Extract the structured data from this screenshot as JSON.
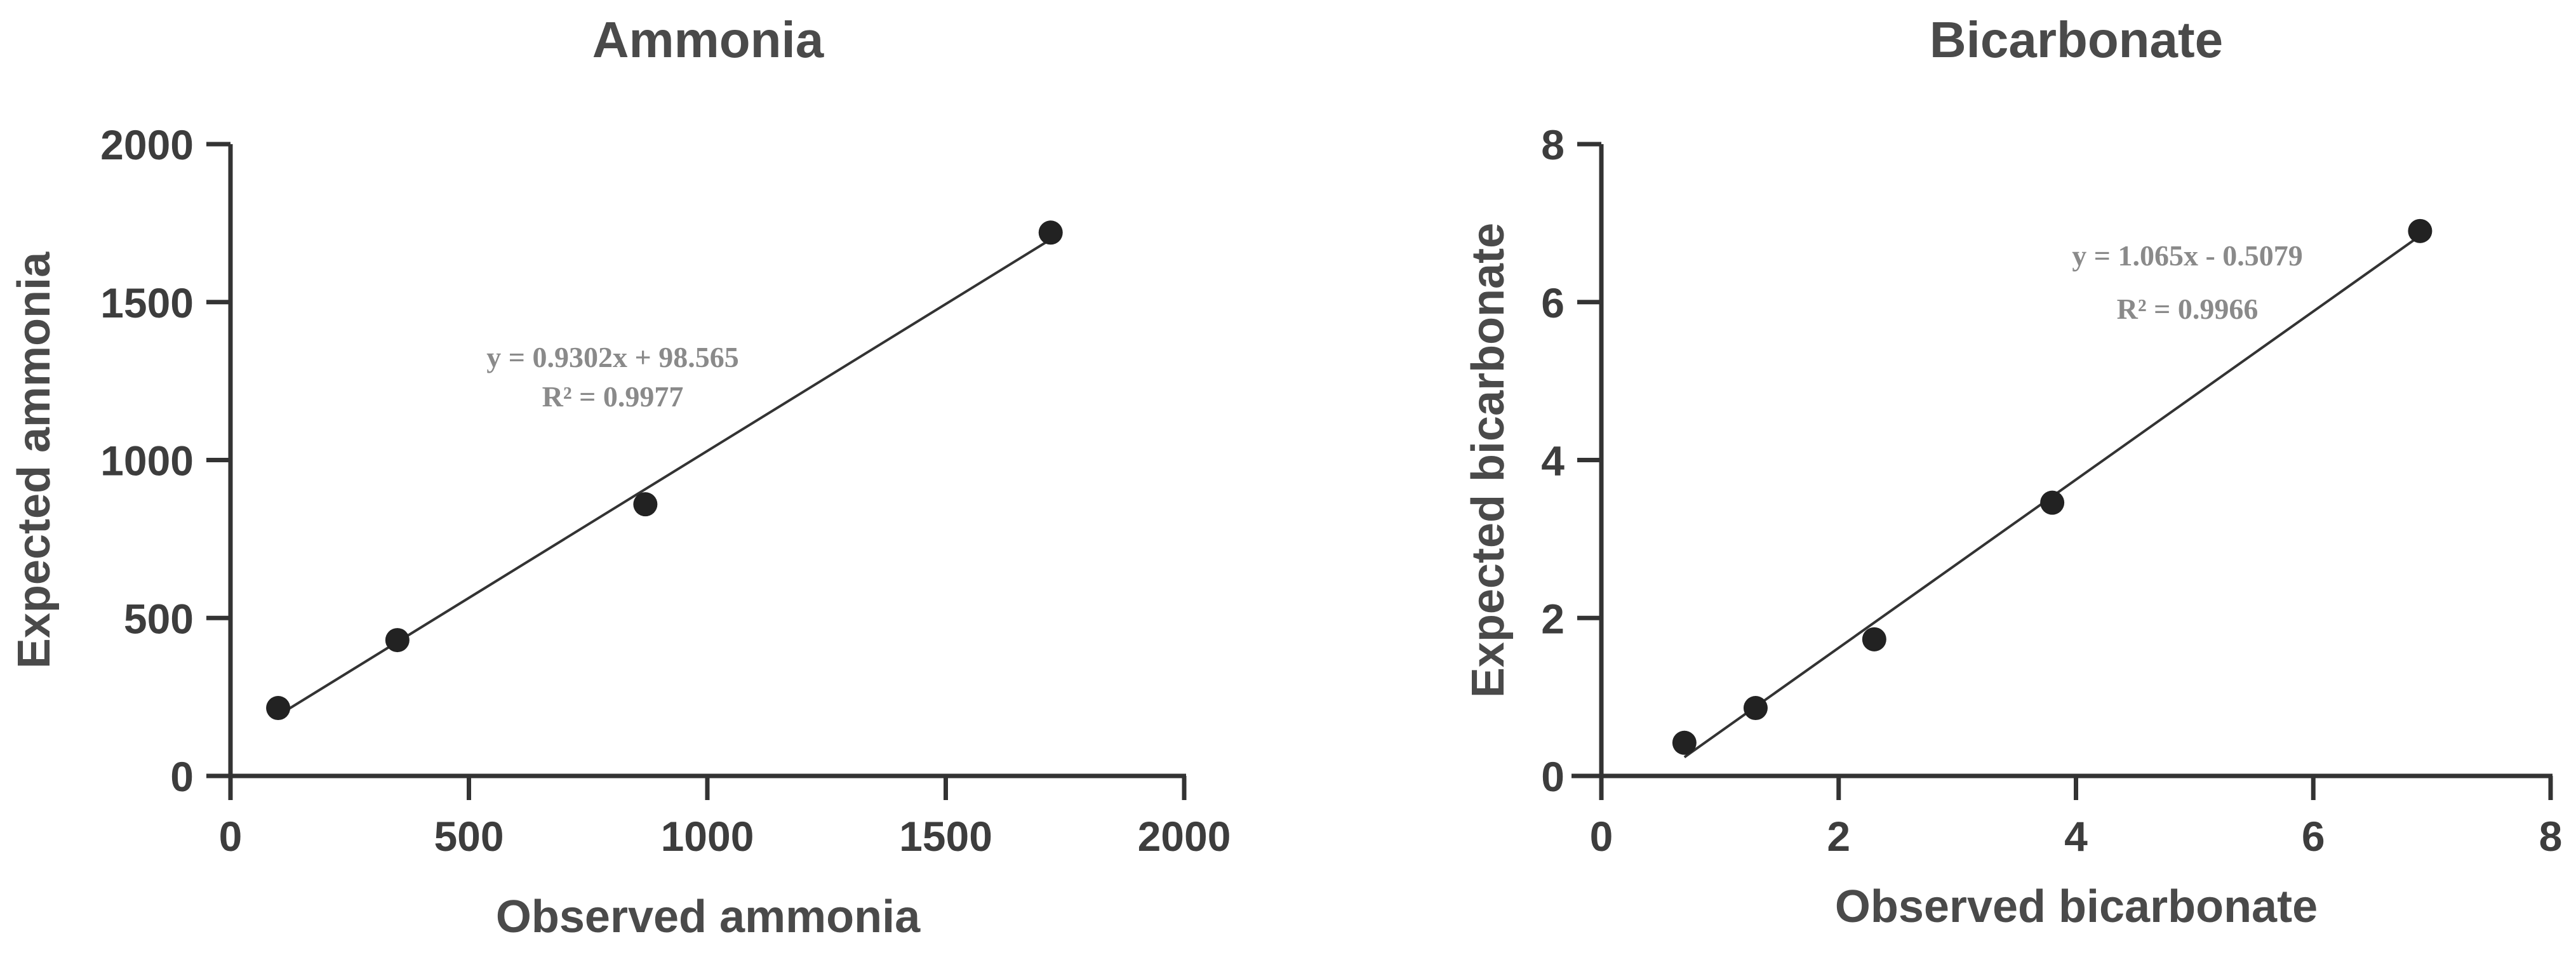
{
  "chart_data": [
    {
      "type": "scatter",
      "title": "Ammonia",
      "xlabel": "Observed ammonia",
      "ylabel": "Expected ammonia",
      "xlim": [
        0,
        2000
      ],
      "ylim": [
        0,
        2000
      ],
      "xticks": [
        0,
        500,
        1000,
        1500,
        2000
      ],
      "yticks": [
        0,
        500,
        1000,
        1500,
        2000
      ],
      "xtick_labels": [
        "0",
        "500",
        "1000",
        "1500",
        "2000"
      ],
      "ytick_labels": [
        "0",
        "500",
        "1000",
        "1500",
        "2000"
      ],
      "points": [
        {
          "x": 100,
          "y": 215
        },
        {
          "x": 350,
          "y": 430
        },
        {
          "x": 870,
          "y": 860
        },
        {
          "x": 1720,
          "y": 1720
        }
      ],
      "fit": {
        "slope": 0.9302,
        "intercept": 98.565,
        "x_range": [
          100,
          1720
        ]
      },
      "annotations": [
        "y = 0.9302x + 98.565",
        "R² = 0.9977"
      ],
      "grid": false,
      "colors": {
        "points": "#222222",
        "line": "#333333",
        "axes": "#333333",
        "annotation": "#8a8a8a"
      }
    },
    {
      "type": "scatter",
      "title": "Bicarbonate",
      "xlabel": "Observed bicarbonate",
      "ylabel": "Expected bicarbonate",
      "xlim": [
        0,
        8
      ],
      "ylim": [
        0,
        8
      ],
      "xticks": [
        0,
        2,
        4,
        6,
        8
      ],
      "yticks": [
        0,
        2,
        4,
        6,
        8
      ],
      "xtick_labels": [
        "0",
        "2",
        "4",
        "6",
        "8"
      ],
      "ytick_labels": [
        "0",
        "2",
        "4",
        "6",
        "8"
      ],
      "points": [
        {
          "x": 0.7,
          "y": 0.42
        },
        {
          "x": 1.3,
          "y": 0.86
        },
        {
          "x": 2.3,
          "y": 1.73
        },
        {
          "x": 3.8,
          "y": 3.46
        },
        {
          "x": 6.9,
          "y": 6.9
        }
      ],
      "fit": {
        "slope": 1.065,
        "intercept": -0.5079,
        "x_range": [
          0.7,
          6.9
        ]
      },
      "annotations": [
        "y = 1.065x - 0.5079",
        "R² = 0.9966"
      ],
      "grid": false,
      "colors": {
        "points": "#222222",
        "line": "#333333",
        "axes": "#333333",
        "annotation": "#8a8a8a"
      }
    }
  ]
}
